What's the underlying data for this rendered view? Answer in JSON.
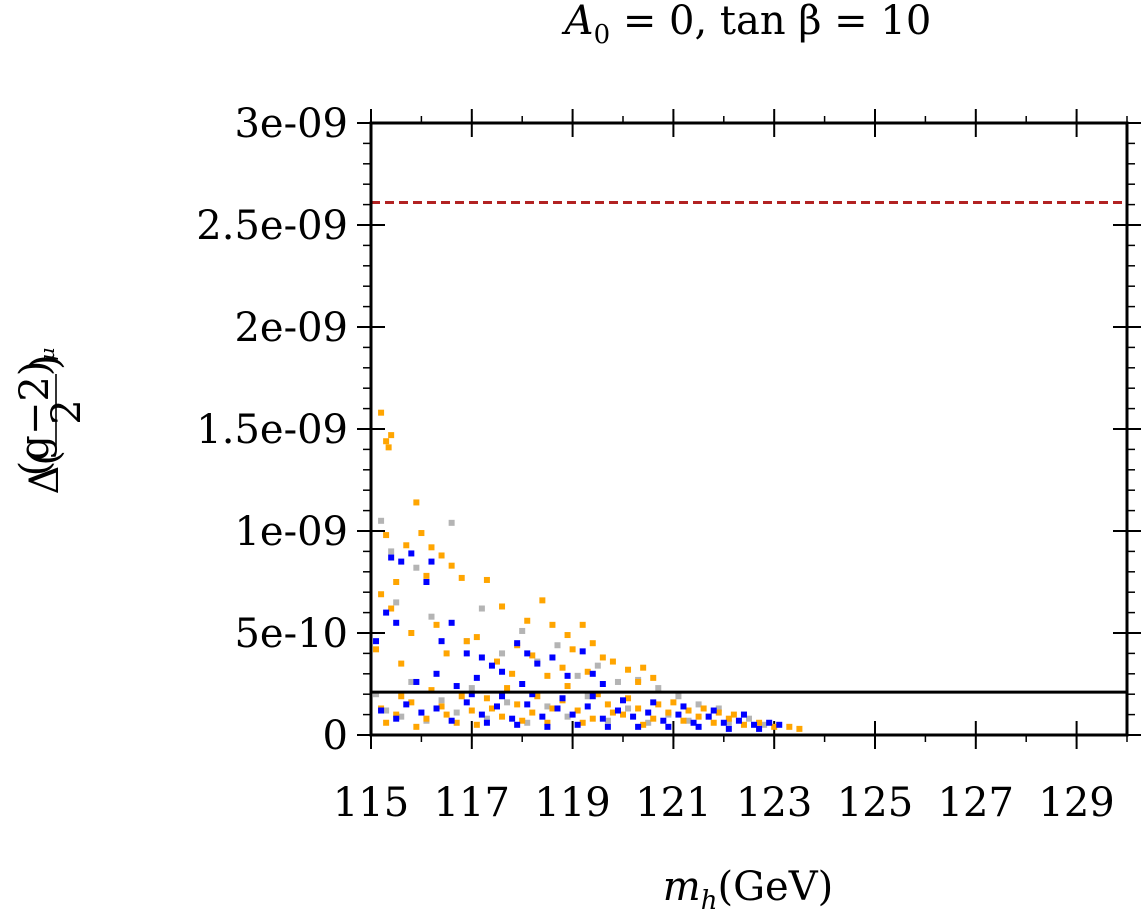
{
  "chart_data": {
    "type": "scatter",
    "title": "A_0 = 0, tan β = 10",
    "title_parts": {
      "main": "A",
      "sub": "0",
      "rest": " = 0, tan β = 10"
    },
    "xlabel": "m_h(GeV)",
    "xlabel_parts": {
      "main": "m",
      "sub": "h",
      "rest": "(GeV)"
    },
    "ylabel": "Δ((g−2)_μ / 2)",
    "ylabel_parts": {
      "prefix": "Δ(",
      "numerator": "(g−2)",
      "num_sub": "μ",
      "denominator": "2",
      "suffix": ")"
    },
    "xlim": [
      115,
      130
    ],
    "ylim": [
      0,
      3e-09
    ],
    "x_ticks": [
      115,
      117,
      119,
      121,
      123,
      125,
      127,
      129
    ],
    "x_tick_labels": [
      "115",
      "117",
      "119",
      "121",
      "123",
      "125",
      "127",
      "129"
    ],
    "y_ticks": [
      0,
      5e-10,
      1e-09,
      1.5e-09,
      2e-09,
      2.5e-09,
      3e-09
    ],
    "y_tick_labels": [
      "0",
      "5e-10",
      "1e-09",
      "1.5e-09",
      "2e-09",
      "2.5e-09",
      "3e-09"
    ],
    "reference_lines": [
      {
        "name": "upper-bound-line",
        "y": 2.61e-09,
        "style": "dashed",
        "color": "#b22222"
      },
      {
        "name": "lower-bound-line",
        "y": 2.1e-10,
        "style": "solid",
        "color": "#000000"
      }
    ],
    "series": [
      {
        "name": "gray-points",
        "color": "#b4b4b4",
        "points": [
          [
            115.2,
            1.05e-09
          ],
          [
            115.4,
            9e-10
          ],
          [
            115.5,
            6.5e-10
          ],
          [
            115.9,
            8.2e-10
          ],
          [
            116.2,
            5.8e-10
          ],
          [
            116.6,
            1.04e-09
          ],
          [
            116.9,
            4.6e-10
          ],
          [
            117.2,
            6.2e-10
          ],
          [
            117.6,
            4e-10
          ],
          [
            118.0,
            5.1e-10
          ],
          [
            118.3,
            3.6e-10
          ],
          [
            118.7,
            4.4e-10
          ],
          [
            119.1,
            2.9e-10
          ],
          [
            119.5,
            3.4e-10
          ],
          [
            119.9,
            2.6e-10
          ],
          [
            120.3,
            2.7e-10
          ],
          [
            120.7,
            2.3e-10
          ],
          [
            121.1,
            1.9e-10
          ],
          [
            121.5,
            1.5e-10
          ],
          [
            121.9,
            1.3e-10
          ],
          [
            122.4,
            1e-10
          ],
          [
            115.1,
            2e-10
          ],
          [
            115.3,
            1.2e-10
          ],
          [
            115.6,
            9e-11
          ],
          [
            115.8,
            2.6e-10
          ],
          [
            116.1,
            7e-11
          ],
          [
            116.4,
            1.7e-10
          ],
          [
            116.7,
            1.1e-10
          ],
          [
            117.0,
            2.3e-10
          ],
          [
            117.3,
            8e-11
          ],
          [
            117.7,
            1.6e-10
          ],
          [
            118.1,
            6e-11
          ],
          [
            118.5,
            1.4e-10
          ],
          [
            118.9,
            9e-11
          ],
          [
            119.3,
            1.9e-10
          ],
          [
            119.7,
            7e-11
          ],
          [
            120.1,
            1.3e-10
          ],
          [
            120.5,
            6e-11
          ],
          [
            120.9,
            1e-10
          ],
          [
            121.3,
            7e-11
          ],
          [
            121.7,
            9e-11
          ],
          [
            122.1,
            6e-11
          ],
          [
            122.5,
            8e-11
          ],
          [
            122.8,
            5e-11
          ]
        ]
      },
      {
        "name": "orange-points",
        "color": "#ffa500",
        "points": [
          [
            115.2,
            1.58e-09
          ],
          [
            115.3,
            1.44e-09
          ],
          [
            115.35,
            1.41e-09
          ],
          [
            115.4,
            1.47e-09
          ],
          [
            115.9,
            1.14e-09
          ],
          [
            115.3,
            9.8e-10
          ],
          [
            115.7,
            9.3e-10
          ],
          [
            116.0,
            9.9e-10
          ],
          [
            116.2,
            9.2e-10
          ],
          [
            116.4,
            8.8e-10
          ],
          [
            116.6,
            8.3e-10
          ],
          [
            116.8,
            7.7e-10
          ],
          [
            116.1,
            7.8e-10
          ],
          [
            115.5,
            7.5e-10
          ],
          [
            115.2,
            6.9e-10
          ],
          [
            115.4,
            6.2e-10
          ],
          [
            117.3,
            7.6e-10
          ],
          [
            117.6,
            6.3e-10
          ],
          [
            118.1,
            5.6e-10
          ],
          [
            118.4,
            6.6e-10
          ],
          [
            118.6,
            5.4e-10
          ],
          [
            118.9,
            4.9e-10
          ],
          [
            119.2,
            5.4e-10
          ],
          [
            119.4,
            4.5e-10
          ],
          [
            119.6,
            3.8e-10
          ],
          [
            119.0,
            4.2e-10
          ],
          [
            119.8,
            3.6e-10
          ],
          [
            120.1,
            3.2e-10
          ],
          [
            120.4,
            3.3e-10
          ],
          [
            120.6,
            2.8e-10
          ],
          [
            117.1,
            4.8e-10
          ],
          [
            117.9,
            4.4e-10
          ],
          [
            116.3,
            5.4e-10
          ],
          [
            116.9,
            4.6e-10
          ],
          [
            115.8,
            5e-10
          ],
          [
            118.2,
            3.9e-10
          ],
          [
            117.5,
            3.6e-10
          ],
          [
            118.8,
            3.3e-10
          ],
          [
            119.3,
            3.1e-10
          ],
          [
            115.1,
            4.2e-10
          ],
          [
            115.6,
            3.5e-10
          ],
          [
            116.5,
            4e-10
          ],
          [
            117.8,
            3e-10
          ],
          [
            118.5,
            2.9e-10
          ],
          [
            120.3,
            2.6e-10
          ],
          [
            115.2,
            1.3e-10
          ],
          [
            115.5,
            1e-10
          ],
          [
            115.8,
            1.6e-10
          ],
          [
            116.1,
            8e-11
          ],
          [
            116.4,
            1.4e-10
          ],
          [
            116.7,
            6e-11
          ],
          [
            117.0,
            1.2e-10
          ],
          [
            117.3,
            1.8e-10
          ],
          [
            117.6,
            9e-11
          ],
          [
            117.9,
            1.5e-10
          ],
          [
            118.2,
            1.1e-10
          ],
          [
            118.5,
            6e-11
          ],
          [
            118.8,
            1.7e-10
          ],
          [
            119.1,
            1.2e-10
          ],
          [
            119.4,
            8e-11
          ],
          [
            119.7,
            1.5e-10
          ],
          [
            120.0,
            1e-10
          ],
          [
            120.3,
            1.3e-10
          ],
          [
            120.6,
            8e-11
          ],
          [
            120.9,
            1.1e-10
          ],
          [
            121.2,
            7e-11
          ],
          [
            121.5,
            9e-11
          ],
          [
            121.8,
            6e-11
          ],
          [
            122.1,
            8e-11
          ],
          [
            122.4,
            5e-11
          ],
          [
            122.7,
            6e-11
          ],
          [
            123.0,
            4e-11
          ],
          [
            123.3,
            4e-11
          ],
          [
            123.5,
            3e-11
          ],
          [
            115.3,
            6e-11
          ],
          [
            115.6,
            1.9e-10
          ],
          [
            115.9,
            4e-11
          ],
          [
            116.2,
            2.2e-10
          ],
          [
            116.5,
            1e-10
          ],
          [
            116.8,
            1.9e-10
          ],
          [
            117.1,
            5e-11
          ],
          [
            117.4,
            1.3e-10
          ],
          [
            117.7,
            2.3e-10
          ],
          [
            118.0,
            7e-11
          ],
          [
            118.3,
            1.9e-10
          ],
          [
            118.6,
            1.3e-10
          ],
          [
            118.9,
            2.4e-10
          ],
          [
            119.2,
            6e-11
          ],
          [
            119.5,
            2e-10
          ],
          [
            119.8,
            1.1e-10
          ],
          [
            120.1,
            1.8e-10
          ],
          [
            120.4,
            5e-11
          ],
          [
            120.7,
            1.5e-10
          ],
          [
            121.0,
            1.6e-10
          ],
          [
            121.3,
            1.2e-10
          ],
          [
            121.6,
            1.3e-10
          ],
          [
            121.9,
            1.1e-10
          ],
          [
            122.2,
            1e-10
          ]
        ]
      },
      {
        "name": "blue-points",
        "color": "#0000ff",
        "points": [
          [
            115.4,
            8.7e-10
          ],
          [
            115.6,
            8.5e-10
          ],
          [
            115.8,
            8.9e-10
          ],
          [
            116.2,
            8.5e-10
          ],
          [
            116.1,
            7.5e-10
          ],
          [
            115.3,
            6e-10
          ],
          [
            115.5,
            5.5e-10
          ],
          [
            115.1,
            4.6e-10
          ],
          [
            116.6,
            5.5e-10
          ],
          [
            116.4,
            4.6e-10
          ],
          [
            116.9,
            4e-10
          ],
          [
            117.2,
            3.8e-10
          ],
          [
            117.4,
            3.4e-10
          ],
          [
            117.6,
            3.1e-10
          ],
          [
            117.9,
            4.5e-10
          ],
          [
            118.1,
            4e-10
          ],
          [
            118.3,
            3.5e-10
          ],
          [
            118.6,
            3.8e-10
          ],
          [
            118.9,
            2.9e-10
          ],
          [
            119.2,
            4.1e-10
          ],
          [
            119.4,
            3e-10
          ],
          [
            119.6,
            2.5e-10
          ],
          [
            115.9,
            2.6e-10
          ],
          [
            116.3,
            3e-10
          ],
          [
            116.7,
            2.4e-10
          ],
          [
            117.1,
            2.8e-10
          ],
          [
            118.0,
            2.5e-10
          ],
          [
            115.2,
            1.2e-10
          ],
          [
            115.5,
            8e-11
          ],
          [
            115.7,
            1.5e-10
          ],
          [
            116.0,
            1.1e-10
          ],
          [
            116.3,
            1.3e-10
          ],
          [
            116.6,
            7e-11
          ],
          [
            116.9,
            1.6e-10
          ],
          [
            117.2,
            1e-10
          ],
          [
            117.5,
            1.4e-10
          ],
          [
            117.8,
            8e-11
          ],
          [
            118.1,
            1.5e-10
          ],
          [
            118.4,
            9e-11
          ],
          [
            118.7,
            1.3e-10
          ],
          [
            119.0,
            1e-10
          ],
          [
            119.3,
            1.4e-10
          ],
          [
            119.6,
            8e-11
          ],
          [
            119.9,
            1.2e-10
          ],
          [
            120.2,
            9e-11
          ],
          [
            120.5,
            1.1e-10
          ],
          [
            120.8,
            7e-11
          ],
          [
            121.1,
            1e-10
          ],
          [
            121.4,
            6e-11
          ],
          [
            121.7,
            9e-11
          ],
          [
            122.0,
            6e-11
          ],
          [
            122.3,
            7e-11
          ],
          [
            122.6,
            5e-11
          ],
          [
            122.9,
            6e-11
          ],
          [
            123.1,
            5e-11
          ],
          [
            117.0,
            2e-10
          ],
          [
            117.6,
            1.9e-10
          ],
          [
            118.2,
            2e-10
          ],
          [
            118.8,
            1.8e-10
          ],
          [
            119.4,
            1.9e-10
          ],
          [
            120.0,
            1.7e-10
          ],
          [
            120.6,
            1.6e-10
          ],
          [
            121.2,
            1.4e-10
          ],
          [
            121.8,
            1.2e-10
          ],
          [
            122.4,
            1e-10
          ],
          [
            117.3,
            6e-11
          ],
          [
            117.9,
            5e-11
          ],
          [
            118.5,
            4e-11
          ],
          [
            119.1,
            5e-11
          ],
          [
            119.7,
            4e-11
          ],
          [
            120.3,
            4e-11
          ],
          [
            120.9,
            4e-11
          ],
          [
            121.5,
            4e-11
          ],
          [
            122.1,
            3e-11
          ],
          [
            122.7,
            3e-11
          ]
        ]
      }
    ],
    "grid": false,
    "legend": "none"
  }
}
